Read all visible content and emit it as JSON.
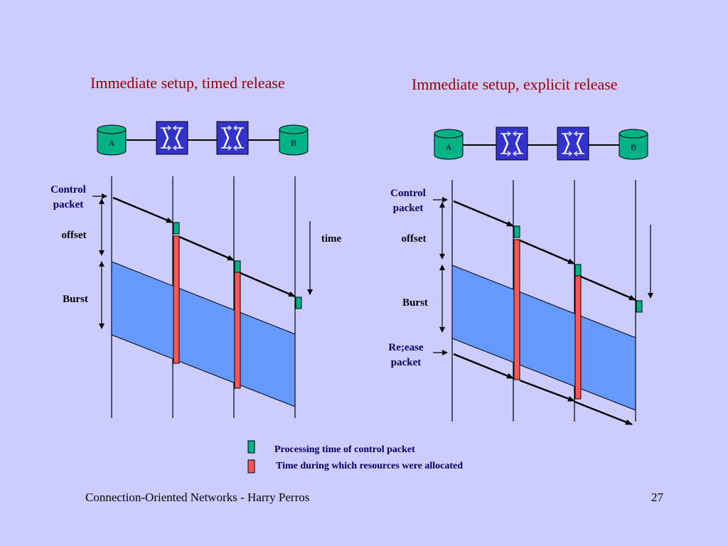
{
  "left": {
    "title": "Immediate setup, timed release",
    "node_a": "A",
    "node_b": "B",
    "control_packet": "Control packet",
    "offset": "offset",
    "burst": "Burst",
    "time": "time"
  },
  "right": {
    "title": "Immediate setup, explicit release",
    "node_a": "A",
    "node_b": "B",
    "control_packet": "Control packet",
    "offset": "offset",
    "burst": "Burst",
    "release_packet": "Re;ease packet"
  },
  "legend": {
    "processing": "Processing time of control packet",
    "allocated": "Time during which resources were allocated"
  },
  "footer": {
    "left": "Connection-Oriented Networks - Harry Perros",
    "page": "27"
  },
  "colors": {
    "background": "#ccccff",
    "title": "#990000",
    "label": "#000066",
    "node": "#00b386",
    "switch": "#3333cc",
    "burst": "#6699ff",
    "processing": "#00b386",
    "allocated": "#ff5555"
  },
  "icons": [
    "database-icon",
    "switch-icon"
  ]
}
